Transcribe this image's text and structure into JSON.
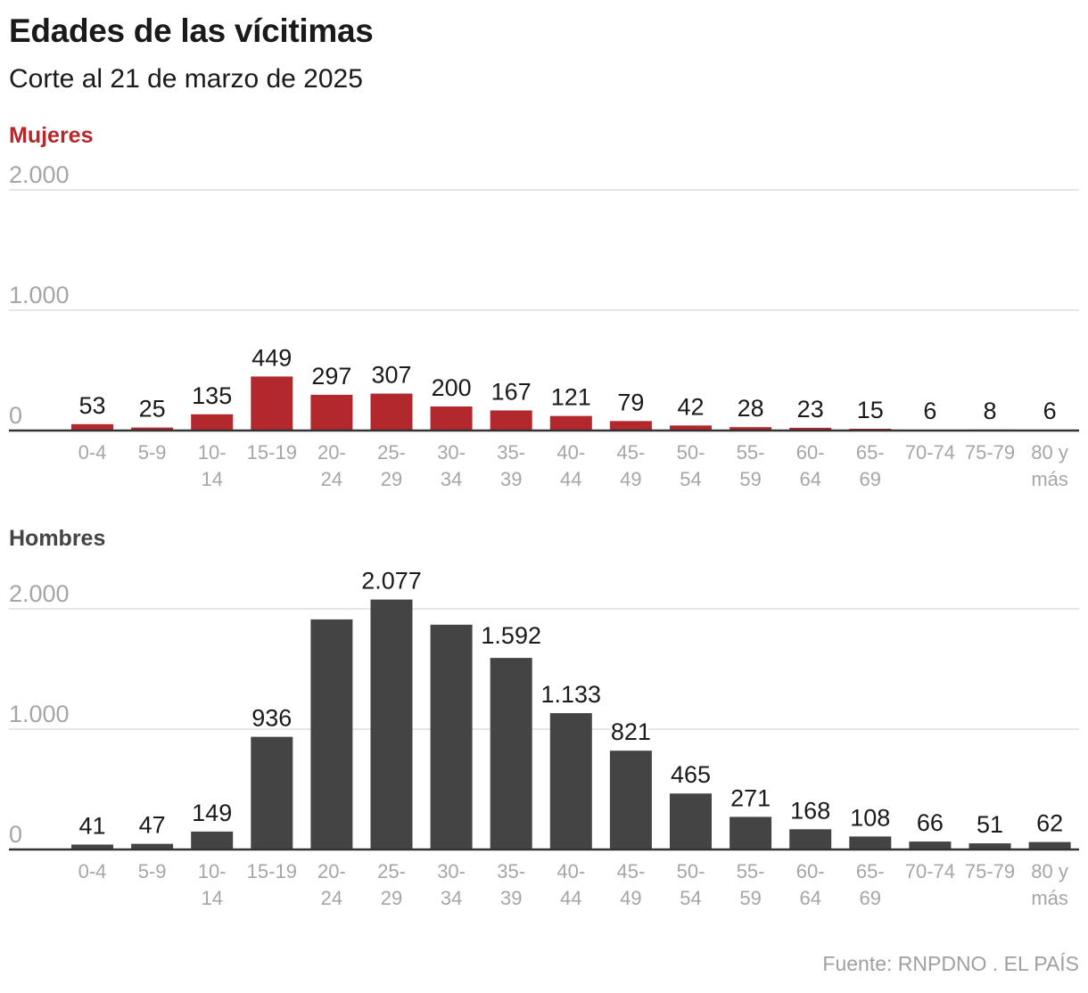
{
  "title": "Edades de las vícitimas",
  "subtitle": "Corte al 21 de marzo de 2025",
  "source": "Fuente: RNPDNO . EL PAÍS",
  "colors": {
    "mujeres": "#b3282d",
    "hombres": "#444444",
    "grid": "#e6e6e6",
    "axis": "#333333",
    "tick": "#a6a6a6",
    "label": "#1a1a1a"
  },
  "chart_data": [
    {
      "type": "bar",
      "title": "Mujeres",
      "categories": [
        "0-4",
        "5-9",
        "10-14",
        "15-19",
        "20-24",
        "25-29",
        "30-34",
        "35-39",
        "40-44",
        "45-49",
        "50-54",
        "55-59",
        "60-64",
        "65-69",
        "70-74",
        "75-79",
        "80 y más"
      ],
      "category_lines": [
        [
          "0-4"
        ],
        [
          "5-9"
        ],
        [
          "10-",
          "14"
        ],
        [
          "15-19"
        ],
        [
          "20-",
          "24"
        ],
        [
          "25-",
          "29"
        ],
        [
          "30-",
          "34"
        ],
        [
          "35-",
          "39"
        ],
        [
          "40-",
          "44"
        ],
        [
          "45-",
          "49"
        ],
        [
          "50-",
          "54"
        ],
        [
          "55-",
          "59"
        ],
        [
          "60-",
          "64"
        ],
        [
          "65-",
          "69"
        ],
        [
          "70-74"
        ],
        [
          "75-79"
        ],
        [
          "80 y",
          "más"
        ]
      ],
      "values": [
        53,
        25,
        135,
        449,
        297,
        307,
        200,
        167,
        121,
        79,
        42,
        28,
        23,
        15,
        6,
        8,
        6
      ],
      "data_labels": [
        "53",
        "25",
        "135",
        "449",
        "297",
        "307",
        "200",
        "167",
        "121",
        "79",
        "42",
        "28",
        "23",
        "15",
        "6",
        "8",
        "6"
      ],
      "yticks": [
        0,
        1000,
        2000
      ],
      "ytick_labels": [
        "0",
        "1.000",
        "2.000"
      ],
      "ylim": [
        0,
        2000
      ],
      "grid": true,
      "xlabel": "",
      "ylabel": ""
    },
    {
      "type": "bar",
      "title": "Hombres",
      "categories": [
        "0-4",
        "5-9",
        "10-14",
        "15-19",
        "20-24",
        "25-29",
        "30-34",
        "35-39",
        "40-44",
        "45-49",
        "50-54",
        "55-59",
        "60-64",
        "65-69",
        "70-74",
        "75-79",
        "80 y más"
      ],
      "category_lines": [
        [
          "0-4"
        ],
        [
          "5-9"
        ],
        [
          "10-",
          "14"
        ],
        [
          "15-19"
        ],
        [
          "20-",
          "24"
        ],
        [
          "25-",
          "29"
        ],
        [
          "30-",
          "34"
        ],
        [
          "35-",
          "39"
        ],
        [
          "40-",
          "44"
        ],
        [
          "45-",
          "49"
        ],
        [
          "50-",
          "54"
        ],
        [
          "55-",
          "59"
        ],
        [
          "60-",
          "64"
        ],
        [
          "65-",
          "69"
        ],
        [
          "70-74"
        ],
        [
          "75-79"
        ],
        [
          "80 y",
          "más"
        ]
      ],
      "values": [
        41,
        47,
        149,
        936,
        1912,
        2077,
        1868,
        1592,
        1133,
        821,
        465,
        271,
        168,
        108,
        66,
        51,
        62
      ],
      "data_labels": [
        "41",
        "47",
        "149",
        "936",
        "",
        "2.077",
        "",
        "1.592",
        "1.133",
        "821",
        "465",
        "271",
        "168",
        "108",
        "66",
        "51",
        "62"
      ],
      "yticks": [
        0,
        1000,
        2000
      ],
      "ytick_labels": [
        "0",
        "1.000",
        "2.000"
      ],
      "ylim": [
        0,
        2000
      ],
      "grid": true,
      "xlabel": "",
      "ylabel": ""
    }
  ]
}
